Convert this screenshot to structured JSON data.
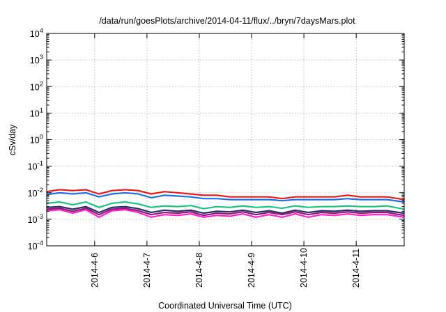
{
  "chart_data": {
    "type": "line",
    "title": "/data/run/goesPlots/archive/2014-04-11/flux/../bryn/7daysMars.plot",
    "xlabel": "Coordinated Universal Time (UTC)",
    "ylabel": "cSv/day",
    "y_scale": "log",
    "ylim": [
      0.0001,
      10000
    ],
    "xlim": [
      "2014-04-05 02:00",
      "2014-04-11 22:00"
    ],
    "grid": true,
    "x_ticks": [
      "2014-4-6",
      "2014-4-7",
      "2014-4-8",
      "2014-4-9",
      "2014-4-10",
      "2014-4-11"
    ],
    "y_ticks": [
      {
        "base": "10",
        "exp": "-4"
      },
      {
        "base": "10",
        "exp": "-3"
      },
      {
        "base": "10",
        "exp": "-2"
      },
      {
        "base": "10",
        "exp": "-1"
      },
      {
        "base": "10",
        "exp": "0"
      },
      {
        "base": "10",
        "exp": "1"
      },
      {
        "base": "10",
        "exp": "2"
      },
      {
        "base": "10",
        "exp": "3"
      },
      {
        "base": "10",
        "exp": "4"
      }
    ],
    "x": [
      "2014-04-05 02:00",
      "2014-04-05 08:00",
      "2014-04-05 14:00",
      "2014-04-05 20:00",
      "2014-04-06 02:00",
      "2014-04-06 08:00",
      "2014-04-06 14:00",
      "2014-04-06 20:00",
      "2014-04-07 02:00",
      "2014-04-07 08:00",
      "2014-04-07 14:00",
      "2014-04-07 20:00",
      "2014-04-08 02:00",
      "2014-04-08 08:00",
      "2014-04-08 14:00",
      "2014-04-08 20:00",
      "2014-04-09 02:00",
      "2014-04-09 08:00",
      "2014-04-09 14:00",
      "2014-04-09 20:00",
      "2014-04-10 02:00",
      "2014-04-10 08:00",
      "2014-04-10 14:00",
      "2014-04-10 20:00",
      "2014-04-11 02:00",
      "2014-04-11 08:00",
      "2014-04-11 14:00",
      "2014-04-11 22:00"
    ],
    "series": [
      {
        "color": "#e41a1c",
        "values": [
          0.011,
          0.013,
          0.012,
          0.013,
          0.009,
          0.012,
          0.013,
          0.012,
          0.009,
          0.011,
          0.01,
          0.009,
          0.008,
          0.008,
          0.007,
          0.007,
          0.007,
          0.007,
          0.006,
          0.007,
          0.007,
          0.007,
          0.007,
          0.008,
          0.007,
          0.007,
          0.007,
          0.0055
        ]
      },
      {
        "color": "#1f6fe5",
        "values": [
          0.0085,
          0.01,
          0.009,
          0.01,
          0.007,
          0.009,
          0.01,
          0.009,
          0.0065,
          0.008,
          0.0075,
          0.007,
          0.006,
          0.006,
          0.0055,
          0.0055,
          0.0055,
          0.0055,
          0.005,
          0.0055,
          0.0055,
          0.0055,
          0.0055,
          0.006,
          0.0055,
          0.0055,
          0.0055,
          0.0045
        ]
      },
      {
        "color": "#1fc08a",
        "values": [
          0.004,
          0.0045,
          0.0035,
          0.0045,
          0.0028,
          0.004,
          0.0045,
          0.0038,
          0.0028,
          0.0032,
          0.003,
          0.0033,
          0.0025,
          0.003,
          0.0028,
          0.0032,
          0.0028,
          0.003,
          0.0026,
          0.0032,
          0.0028,
          0.003,
          0.003,
          0.0032,
          0.003,
          0.003,
          0.0032,
          0.0024
        ]
      },
      {
        "color": "#2a2a6a",
        "values": [
          0.0028,
          0.003,
          0.0024,
          0.003,
          0.0018,
          0.0028,
          0.003,
          0.0025,
          0.0018,
          0.0022,
          0.002,
          0.0022,
          0.0017,
          0.002,
          0.0019,
          0.0022,
          0.0018,
          0.0021,
          0.0017,
          0.0022,
          0.0018,
          0.0021,
          0.002,
          0.0022,
          0.002,
          0.0021,
          0.0021,
          0.0017
        ]
      },
      {
        "color": "#8b1a6b",
        "values": [
          0.0024,
          0.0026,
          0.002,
          0.0026,
          0.0015,
          0.0024,
          0.0026,
          0.0021,
          0.0015,
          0.0018,
          0.0017,
          0.0019,
          0.0014,
          0.0017,
          0.0016,
          0.0019,
          0.0015,
          0.0018,
          0.0015,
          0.0019,
          0.0015,
          0.0018,
          0.0017,
          0.0019,
          0.0017,
          0.0018,
          0.0018,
          0.0014
        ]
      },
      {
        "color": "#ff1fd0",
        "values": [
          0.0021,
          0.0023,
          0.0017,
          0.0023,
          0.0012,
          0.0021,
          0.0023,
          0.0018,
          0.0012,
          0.0015,
          0.0014,
          0.0016,
          0.0012,
          0.0014,
          0.0013,
          0.0016,
          0.0012,
          0.0015,
          0.0012,
          0.0016,
          0.0012,
          0.0015,
          0.0014,
          0.0016,
          0.0014,
          0.0015,
          0.0015,
          0.0012
        ]
      }
    ]
  }
}
